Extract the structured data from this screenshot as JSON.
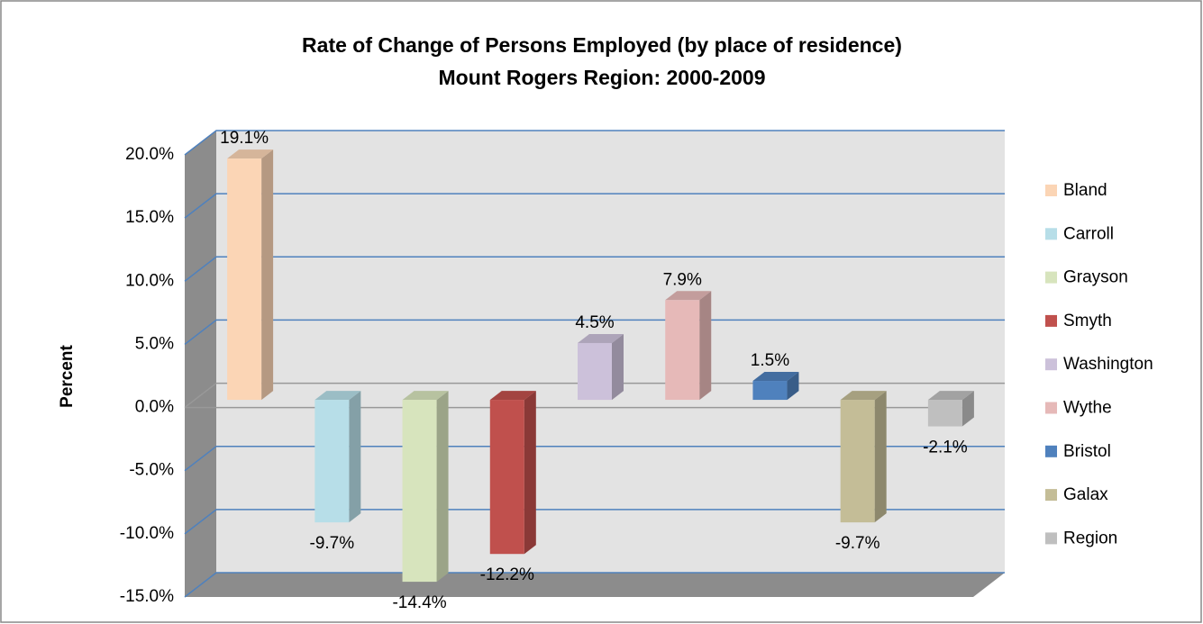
{
  "chart_data": {
    "type": "bar3d",
    "title": "Rate of Change of Persons Employed (by place of residence)",
    "subtitle": "Mount Rogers Region: 2000-2009",
    "y_label": "Percent",
    "categories": [
      "Bland",
      "Carroll",
      "Grayson",
      "Smyth",
      "Washington",
      "Wythe",
      "Bristol",
      "Galax",
      "Region"
    ],
    "values": [
      19.1,
      -9.7,
      -14.4,
      -12.2,
      4.5,
      7.9,
      1.5,
      -9.7,
      -2.1
    ],
    "value_labels": [
      "19.1%",
      "-9.7%",
      "-14.4%",
      "-12.2%",
      "4.5%",
      "7.9%",
      "1.5%",
      "-9.7%",
      "-2.1%"
    ],
    "colors": [
      "#fbd5b5",
      "#b7dee8",
      "#d7e4bd",
      "#c0504d",
      "#ccc1da",
      "#e6b9b8",
      "#4f81bd",
      "#c4bd97",
      "#bfbfbf"
    ],
    "ylim": [
      -15,
      20
    ],
    "yticks": [
      {
        "value": -15,
        "label": "-15.0%"
      },
      {
        "value": -10,
        "label": "-10.0%"
      },
      {
        "value": -5,
        "label": "-5.0%"
      },
      {
        "value": 0,
        "label": "0.0%"
      },
      {
        "value": 5,
        "label": "5.0%"
      },
      {
        "value": 10,
        "label": "10.0%"
      },
      {
        "value": 15,
        "label": "15.0%"
      },
      {
        "value": 20,
        "label": "20.0%"
      }
    ],
    "grid": true,
    "legend": "right"
  }
}
